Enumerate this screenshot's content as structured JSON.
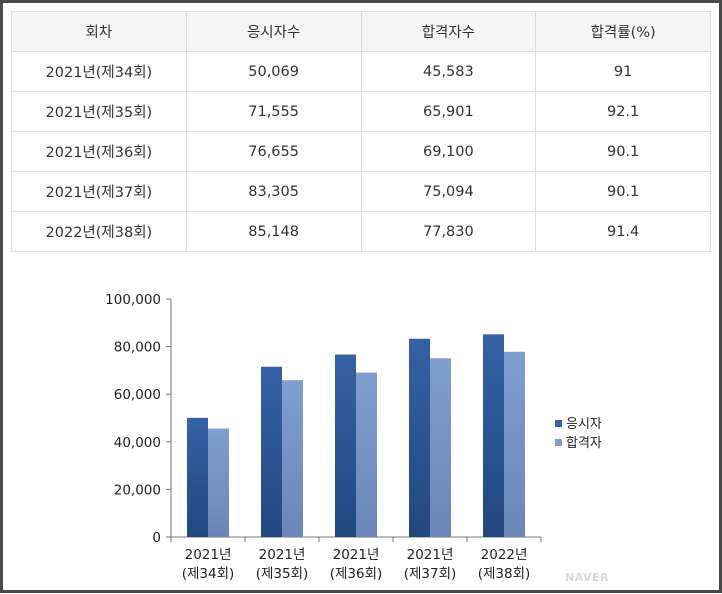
{
  "table": {
    "headers": [
      "회차",
      "응시자수",
      "합격자수",
      "합격률(%)"
    ],
    "rows": [
      [
        "2021년(제34회)",
        "50,069",
        "45,583",
        "91"
      ],
      [
        "2021년(제35회)",
        "71,555",
        "65,901",
        "92.1"
      ],
      [
        "2021년(제36회)",
        "76,655",
        "69,100",
        "90.1"
      ],
      [
        "2021년(제37회)",
        "83,305",
        "75,094",
        "90.1"
      ],
      [
        "2022년(제38회)",
        "85,148",
        "77,830",
        "91.4"
      ]
    ]
  },
  "chart_data": {
    "type": "bar",
    "categories": [
      [
        "2021년",
        "(제34회)"
      ],
      [
        "2021년",
        "(제35회)"
      ],
      [
        "2021년",
        "(제36회)"
      ],
      [
        "2021년",
        "(제37회)"
      ],
      [
        "2022년",
        "(제38회)"
      ]
    ],
    "series": [
      {
        "name": "응시자",
        "values": [
          50069,
          71555,
          76655,
          83305,
          85148
        ],
        "color": "#3561a6"
      },
      {
        "name": "합격자",
        "values": [
          45583,
          65901,
          69100,
          75094,
          77830
        ],
        "color": "#7f9fd0"
      }
    ],
    "ylim": [
      0,
      100000
    ],
    "yticks": [
      0,
      20000,
      40000,
      60000,
      80000,
      100000
    ],
    "ytick_labels": [
      "0",
      "20,000",
      "40,000",
      "60,000",
      "80,000",
      "100,000"
    ],
    "legend_position": "right",
    "grid": false
  },
  "watermark": "NAVER"
}
